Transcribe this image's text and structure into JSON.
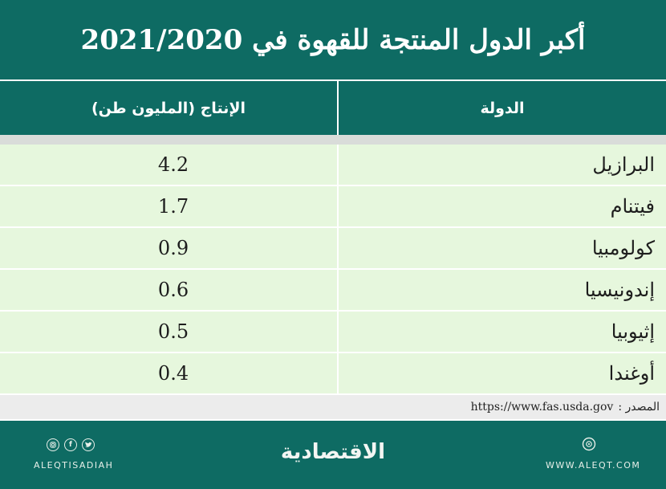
{
  "title": "أكبر الدول المنتجة للقهوة في 2021/2020",
  "table": {
    "headers": {
      "country": "الدولة",
      "production": "الإنتاج (المليون طن)"
    },
    "rows": [
      {
        "country": "البرازيل",
        "value": "4.2"
      },
      {
        "country": "فيتنام",
        "value": "1.7"
      },
      {
        "country": "كولومبيا",
        "value": "0.9"
      },
      {
        "country": "إندونيسيا",
        "value": "0.6"
      },
      {
        "country": "إثيوبيا",
        "value": "0.5"
      },
      {
        "country": "أوغندا",
        "value": "0.4"
      }
    ]
  },
  "source": {
    "label": "المصدر :",
    "url": "https://www.fas.usda.gov"
  },
  "footer": {
    "handle": "ALEQTISADIAH",
    "brand": "الاقتصادية",
    "website": "WWW.ALEQT.COM",
    "social_icons": [
      "instagram-icon",
      "facebook-icon",
      "twitter-icon"
    ],
    "colors": {
      "primary": "#0e6b63",
      "row_bg": "#e6f7dd"
    }
  }
}
